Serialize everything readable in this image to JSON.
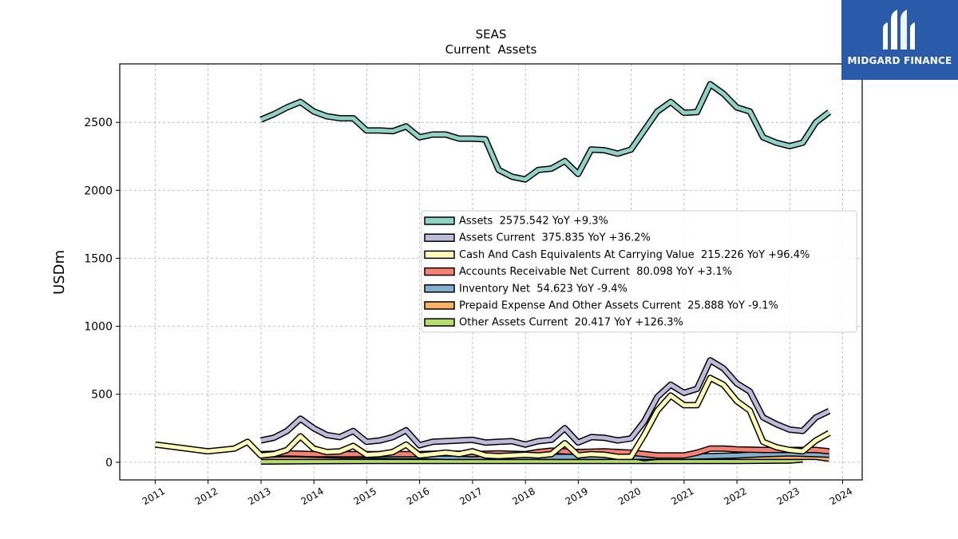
{
  "brand": {
    "name": "MIDGARD FINANCE",
    "color": "#2a5bab",
    "logo_icon": "stylized-m-logo-icon"
  },
  "chart_data": {
    "type": "line",
    "title": "SEAS",
    "subtitle": "Current  Assets",
    "xlabel": "",
    "ylabel": "USDm",
    "xlim": [
      "2010-05-01",
      "2024-05-15"
    ],
    "ylim": [
      -130,
      2930
    ],
    "xticks": [
      "2011",
      "2012",
      "2013",
      "2014",
      "2015",
      "2016",
      "2017",
      "2018",
      "2019",
      "2020",
      "2021",
      "2022",
      "2023",
      "2024"
    ],
    "yticks": [
      0,
      500,
      1000,
      1500,
      2000,
      2500
    ],
    "grid": true,
    "legend_position": "center-right",
    "series": [
      {
        "name": "Assets  2575.542 YoY +9.3%",
        "color": "#8dd3c7",
        "points": [
          [
            "2012-12-31",
            2520
          ],
          [
            "2013-03-31",
            2560
          ],
          [
            "2013-06-30",
            2610
          ],
          [
            "2013-09-30",
            2650
          ],
          [
            "2013-12-31",
            2580
          ],
          [
            "2014-03-31",
            2545
          ],
          [
            "2014-06-30",
            2530
          ],
          [
            "2014-09-30",
            2530
          ],
          [
            "2014-12-31",
            2440
          ],
          [
            "2015-03-31",
            2440
          ],
          [
            "2015-06-30",
            2435
          ],
          [
            "2015-09-30",
            2470
          ],
          [
            "2015-12-31",
            2390
          ],
          [
            "2016-03-31",
            2410
          ],
          [
            "2016-06-30",
            2410
          ],
          [
            "2016-09-30",
            2380
          ],
          [
            "2016-12-31",
            2380
          ],
          [
            "2017-03-31",
            2375
          ],
          [
            "2017-06-30",
            2150
          ],
          [
            "2017-09-30",
            2100
          ],
          [
            "2017-12-31",
            2080
          ],
          [
            "2018-03-31",
            2150
          ],
          [
            "2018-06-30",
            2160
          ],
          [
            "2018-09-30",
            2215
          ],
          [
            "2018-12-31",
            2120
          ],
          [
            "2019-03-31",
            2300
          ],
          [
            "2019-06-30",
            2295
          ],
          [
            "2019-09-30",
            2270
          ],
          [
            "2019-12-31",
            2300
          ],
          [
            "2020-03-31",
            2440
          ],
          [
            "2020-06-30",
            2580
          ],
          [
            "2020-09-30",
            2650
          ],
          [
            "2020-12-31",
            2570
          ],
          [
            "2021-03-31",
            2575
          ],
          [
            "2021-06-30",
            2780
          ],
          [
            "2021-09-30",
            2710
          ],
          [
            "2021-12-31",
            2610
          ],
          [
            "2022-03-31",
            2580
          ],
          [
            "2022-06-30",
            2390
          ],
          [
            "2022-09-30",
            2350
          ],
          [
            "2022-12-31",
            2325
          ],
          [
            "2023-03-31",
            2350
          ],
          [
            "2023-06-30",
            2500
          ],
          [
            "2023-09-30",
            2575
          ]
        ]
      },
      {
        "name": "Assets Current  375.835 YoY +36.2%",
        "color": "#bebada",
        "points": [
          [
            "2012-12-31",
            160
          ],
          [
            "2013-03-31",
            180
          ],
          [
            "2013-06-30",
            230
          ],
          [
            "2013-09-30",
            320
          ],
          [
            "2013-12-31",
            250
          ],
          [
            "2014-03-31",
            200
          ],
          [
            "2014-06-30",
            185
          ],
          [
            "2014-09-30",
            230
          ],
          [
            "2014-12-31",
            150
          ],
          [
            "2015-03-31",
            160
          ],
          [
            "2015-06-30",
            185
          ],
          [
            "2015-09-30",
            235
          ],
          [
            "2015-12-31",
            125
          ],
          [
            "2016-03-31",
            150
          ],
          [
            "2016-06-30",
            155
          ],
          [
            "2016-09-30",
            160
          ],
          [
            "2016-12-31",
            165
          ],
          [
            "2017-03-31",
            145
          ],
          [
            "2017-06-30",
            150
          ],
          [
            "2017-09-30",
            155
          ],
          [
            "2017-12-31",
            130
          ],
          [
            "2018-03-31",
            155
          ],
          [
            "2018-06-30",
            165
          ],
          [
            "2018-09-30",
            250
          ],
          [
            "2018-12-31",
            145
          ],
          [
            "2019-03-31",
            185
          ],
          [
            "2019-06-30",
            180
          ],
          [
            "2019-09-30",
            160
          ],
          [
            "2019-12-31",
            175
          ],
          [
            "2020-03-31",
            300
          ],
          [
            "2020-06-30",
            480
          ],
          [
            "2020-09-30",
            570
          ],
          [
            "2020-12-31",
            510
          ],
          [
            "2021-03-31",
            540
          ],
          [
            "2021-06-30",
            750
          ],
          [
            "2021-09-30",
            690
          ],
          [
            "2021-12-31",
            580
          ],
          [
            "2022-03-31",
            520
          ],
          [
            "2022-06-30",
            330
          ],
          [
            "2022-09-30",
            280
          ],
          [
            "2022-12-31",
            240
          ],
          [
            "2023-03-31",
            230
          ],
          [
            "2023-06-30",
            330
          ],
          [
            "2023-09-30",
            376
          ]
        ]
      },
      {
        "name": "Cash And Cash Equivalents At Carrying Value  215.226 YoY +96.4%",
        "color": "#ffffb3",
        "points": [
          [
            "2011-01-01",
            130
          ],
          [
            "2011-12-31",
            80
          ],
          [
            "2012-06-30",
            100
          ],
          [
            "2012-09-30",
            150
          ],
          [
            "2012-12-31",
            50
          ],
          [
            "2013-03-31",
            60
          ],
          [
            "2013-06-30",
            90
          ],
          [
            "2013-09-30",
            190
          ],
          [
            "2013-12-31",
            100
          ],
          [
            "2014-03-31",
            75
          ],
          [
            "2014-06-30",
            80
          ],
          [
            "2014-09-30",
            120
          ],
          [
            "2014-12-31",
            55
          ],
          [
            "2015-03-31",
            60
          ],
          [
            "2015-06-30",
            75
          ],
          [
            "2015-09-30",
            130
          ],
          [
            "2015-12-31",
            50
          ],
          [
            "2016-03-31",
            60
          ],
          [
            "2016-06-30",
            70
          ],
          [
            "2016-09-30",
            60
          ],
          [
            "2016-12-31",
            80
          ],
          [
            "2017-03-31",
            50
          ],
          [
            "2017-06-30",
            45
          ],
          [
            "2017-09-30",
            50
          ],
          [
            "2017-12-31",
            55
          ],
          [
            "2018-03-31",
            50
          ],
          [
            "2018-06-30",
            60
          ],
          [
            "2018-09-30",
            140
          ],
          [
            "2018-12-31",
            50
          ],
          [
            "2019-03-31",
            60
          ],
          [
            "2019-06-30",
            55
          ],
          [
            "2019-09-30",
            40
          ],
          [
            "2019-12-31",
            40
          ],
          [
            "2020-03-31",
            200
          ],
          [
            "2020-06-30",
            380
          ],
          [
            "2020-09-30",
            490
          ],
          [
            "2020-12-31",
            420
          ],
          [
            "2021-03-31",
            420
          ],
          [
            "2021-06-30",
            620
          ],
          [
            "2021-09-30",
            570
          ],
          [
            "2021-12-31",
            450
          ],
          [
            "2022-03-31",
            380
          ],
          [
            "2022-06-30",
            150
          ],
          [
            "2022-09-30",
            110
          ],
          [
            "2022-12-31",
            90
          ],
          [
            "2023-03-31",
            80
          ],
          [
            "2023-06-30",
            160
          ],
          [
            "2023-09-30",
            215
          ]
        ]
      },
      {
        "name": "Accounts Receivable Net Current  80.098 YoY +3.1%",
        "color": "#fb8072",
        "points": [
          [
            "2012-12-31",
            60
          ],
          [
            "2013-06-30",
            65
          ],
          [
            "2013-12-31",
            60
          ],
          [
            "2014-06-30",
            60
          ],
          [
            "2014-12-31",
            60
          ],
          [
            "2015-06-30",
            60
          ],
          [
            "2015-12-31",
            60
          ],
          [
            "2016-06-30",
            65
          ],
          [
            "2016-12-31",
            60
          ],
          [
            "2017-06-30",
            65
          ],
          [
            "2017-12-31",
            60
          ],
          [
            "2018-03-31",
            75
          ],
          [
            "2018-06-30",
            85
          ],
          [
            "2018-12-31",
            75
          ],
          [
            "2019-06-30",
            80
          ],
          [
            "2019-12-31",
            70
          ],
          [
            "2020-06-30",
            50
          ],
          [
            "2020-12-31",
            50
          ],
          [
            "2021-03-31",
            70
          ],
          [
            "2021-06-30",
            100
          ],
          [
            "2021-09-30",
            100
          ],
          [
            "2021-12-31",
            95
          ],
          [
            "2022-06-30",
            90
          ],
          [
            "2022-12-31",
            90
          ],
          [
            "2023-06-30",
            90
          ],
          [
            "2023-09-30",
            80
          ]
        ]
      },
      {
        "name": "Inventory Net  54.623 YoY -9.4%",
        "color": "#80b1d3",
        "points": [
          [
            "2012-12-31",
            55
          ],
          [
            "2013-06-30",
            60
          ],
          [
            "2013-12-31",
            55
          ],
          [
            "2014-06-30",
            50
          ],
          [
            "2014-12-31",
            50
          ],
          [
            "2015-06-30",
            45
          ],
          [
            "2015-12-31",
            45
          ],
          [
            "2016-06-30",
            40
          ],
          [
            "2016-12-31",
            40
          ],
          [
            "2017-06-30",
            40
          ],
          [
            "2017-12-31",
            40
          ],
          [
            "2018-06-30",
            40
          ],
          [
            "2018-12-31",
            40
          ],
          [
            "2019-06-30",
            40
          ],
          [
            "2019-12-31",
            40
          ],
          [
            "2020-06-30",
            40
          ],
          [
            "2020-12-31",
            40
          ],
          [
            "2021-06-30",
            45
          ],
          [
            "2021-12-31",
            50
          ],
          [
            "2022-06-30",
            60
          ],
          [
            "2022-12-31",
            65
          ],
          [
            "2023-06-30",
            60
          ],
          [
            "2023-09-30",
            55
          ]
        ]
      },
      {
        "name": "Prepaid Expense And Other Assets Current  25.888 YoY -9.1%",
        "color": "#fdb462",
        "points": [
          [
            "2012-12-31",
            40
          ],
          [
            "2013-06-30",
            40
          ],
          [
            "2013-12-31",
            40
          ],
          [
            "2014-06-30",
            40
          ],
          [
            "2014-12-31",
            40
          ],
          [
            "2015-06-30",
            40
          ],
          [
            "2015-12-31",
            40
          ],
          [
            "2016-06-30",
            40
          ],
          [
            "2016-12-31",
            40
          ],
          [
            "2017-06-30",
            40
          ],
          [
            "2017-12-31",
            40
          ],
          [
            "2018-06-30",
            40
          ],
          [
            "2018-12-31",
            40
          ],
          [
            "2019-06-30",
            40
          ],
          [
            "2019-12-31",
            50
          ],
          [
            "2020-03-31",
            30
          ],
          [
            "2020-06-30",
            40
          ],
          [
            "2020-12-31",
            40
          ],
          [
            "2021-06-30",
            40
          ],
          [
            "2021-12-31",
            40
          ],
          [
            "2022-06-30",
            40
          ],
          [
            "2022-12-31",
            40
          ],
          [
            "2023-03-31",
            40
          ],
          [
            "2023-06-30",
            40
          ],
          [
            "2023-09-30",
            26
          ]
        ]
      },
      {
        "name": "Other Assets Current  20.417 YoY +126.3%",
        "color": "#b3de69",
        "points": [
          [
            "2012-12-31",
            5
          ],
          [
            "2013-12-31",
            8
          ],
          [
            "2014-12-31",
            10
          ],
          [
            "2015-12-31",
            10
          ],
          [
            "2016-12-31",
            10
          ],
          [
            "2017-12-31",
            10
          ],
          [
            "2018-12-31",
            10
          ],
          [
            "2019-12-31",
            10
          ],
          [
            "2020-12-31",
            10
          ],
          [
            "2021-12-31",
            10
          ],
          [
            "2022-12-31",
            12
          ],
          [
            "2023-03-31",
            20
          ]
        ]
      }
    ]
  }
}
